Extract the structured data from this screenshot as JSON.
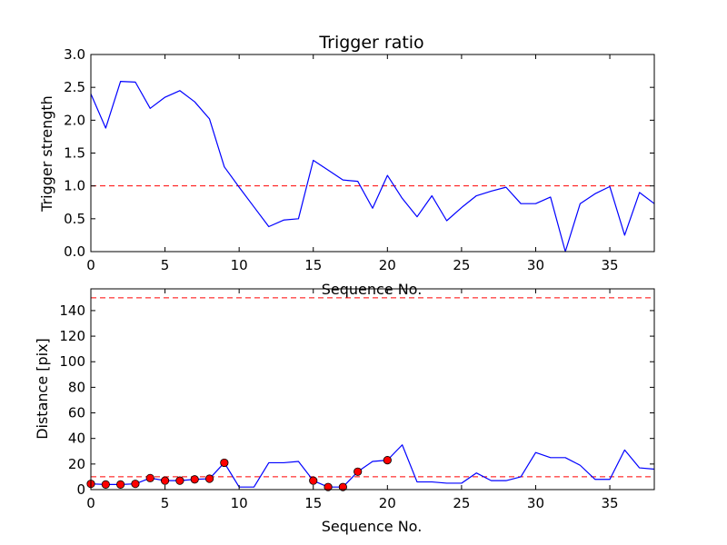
{
  "chart_data": [
    {
      "type": "line",
      "title": "Trigger ratio",
      "xlabel": "Sequence No.",
      "ylabel": "Trigger strength",
      "xlim": [
        0,
        38
      ],
      "ylim": [
        0,
        3.0
      ],
      "xticks": [
        "0",
        "5",
        "10",
        "15",
        "20",
        "25",
        "30",
        "35"
      ],
      "yticks": [
        "0.0",
        "0.5",
        "1.0",
        "1.5",
        "2.0",
        "2.5",
        "3.0"
      ],
      "grid": false,
      "series": [
        {
          "color": "#0000ff",
          "x": [
            0,
            1,
            2,
            3,
            4,
            5,
            6,
            7,
            8,
            9,
            10,
            11,
            12,
            13,
            14,
            15,
            16,
            17,
            18,
            19,
            20,
            21,
            22,
            23,
            24,
            25,
            26,
            27,
            28,
            29,
            30,
            31,
            32,
            33,
            34,
            35,
            36,
            37,
            38
          ],
          "values": [
            2.4,
            1.88,
            2.59,
            2.58,
            2.18,
            2.35,
            2.45,
            2.28,
            2.02,
            1.29,
            0.98,
            0.68,
            0.38,
            0.48,
            0.5,
            1.39,
            1.24,
            1.09,
            1.07,
            0.66,
            1.16,
            0.81,
            0.53,
            0.85,
            0.47,
            0.67,
            0.85,
            0.92,
            0.98,
            0.73,
            0.73,
            0.83,
            0.0,
            0.73,
            0.88,
            0.99,
            0.25,
            0.9,
            0.73
          ]
        }
      ],
      "reference_lines": [
        {
          "y": 1.0,
          "color": "#ff0000",
          "style": "dashed"
        }
      ]
    },
    {
      "type": "line",
      "title": "",
      "xlabel": "Sequence No.",
      "ylabel": "Distance [pix]",
      "xlim": [
        0,
        38
      ],
      "ylim": [
        0,
        157
      ],
      "xticks": [
        "0",
        "5",
        "10",
        "15",
        "20",
        "25",
        "30",
        "35"
      ],
      "yticks": [
        "0",
        "20",
        "40",
        "60",
        "80",
        "100",
        "120",
        "140"
      ],
      "grid": false,
      "series": [
        {
          "color": "#0000ff",
          "x": [
            0,
            1,
            2,
            3,
            4,
            5,
            6,
            7,
            8,
            9,
            10,
            11,
            12,
            13,
            14,
            15,
            16,
            17,
            18,
            19,
            20,
            21,
            22,
            23,
            24,
            25,
            26,
            27,
            28,
            29,
            30,
            31,
            32,
            33,
            34,
            35,
            36,
            37,
            38
          ],
          "values": [
            4.5,
            4,
            4,
            4.5,
            9,
            7,
            7,
            8,
            8.5,
            21,
            2,
            2,
            21,
            21,
            22,
            7,
            2,
            2,
            14,
            22,
            23,
            35,
            6,
            6,
            5,
            5,
            13,
            7,
            7,
            10,
            29,
            25,
            25,
            19,
            8,
            8,
            31,
            17,
            16
          ]
        }
      ],
      "markers": {
        "color": "#ff0000",
        "x": [
          0,
          1,
          2,
          3,
          4,
          5,
          6,
          7,
          8,
          9,
          15,
          16,
          17,
          18,
          20
        ],
        "values": [
          4.5,
          4,
          4,
          4.5,
          9,
          7,
          7,
          8,
          8.5,
          21,
          7,
          2,
          2,
          14,
          23
        ]
      },
      "reference_lines": [
        {
          "y": 150,
          "color": "#ff0000",
          "style": "dashed"
        },
        {
          "y": 10,
          "color": "#ff0000",
          "style": "dashed"
        }
      ]
    }
  ]
}
